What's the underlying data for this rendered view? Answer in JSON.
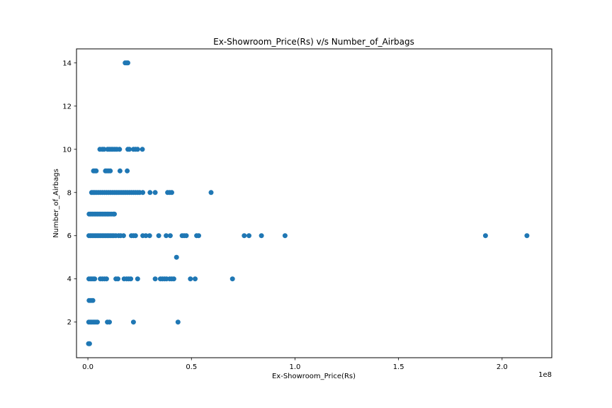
{
  "chart_data": {
    "type": "scatter",
    "title": "Ex-Showroom_Price(Rs) v/s Number_of_Airbags",
    "xlabel": "Ex-Showroom_Price(Rs)",
    "ylabel": "Number_of_Airbags",
    "x_offset_label": "1e8",
    "x_scale": 100000000,
    "xlim": [
      -5500000,
      224000000
    ],
    "ylim": [
      0.35,
      14.65
    ],
    "xticks": [
      0,
      50000000,
      100000000,
      150000000,
      200000000
    ],
    "xtick_labels": [
      "0.0",
      "0.5",
      "1.0",
      "1.5",
      "2.0"
    ],
    "yticks": [
      2,
      4,
      6,
      8,
      10,
      12,
      14
    ],
    "ytick_labels": [
      "2",
      "4",
      "6",
      "8",
      "10",
      "12",
      "14"
    ],
    "grid": false,
    "marker_color": "#1f77b4",
    "points": [
      {
        "x": 18000000,
        "y": 14
      },
      {
        "x": 18700000,
        "y": 14
      },
      {
        "x": 19300000,
        "y": 14
      },
      {
        "x": 5800000,
        "y": 10
      },
      {
        "x": 7000000,
        "y": 10
      },
      {
        "x": 7800000,
        "y": 10
      },
      {
        "x": 9500000,
        "y": 10
      },
      {
        "x": 10300000,
        "y": 10
      },
      {
        "x": 11200000,
        "y": 10
      },
      {
        "x": 12000000,
        "y": 10
      },
      {
        "x": 13000000,
        "y": 10
      },
      {
        "x": 14000000,
        "y": 10
      },
      {
        "x": 15300000,
        "y": 10
      },
      {
        "x": 19300000,
        "y": 10
      },
      {
        "x": 20000000,
        "y": 10
      },
      {
        "x": 22000000,
        "y": 10
      },
      {
        "x": 23000000,
        "y": 10
      },
      {
        "x": 24000000,
        "y": 10
      },
      {
        "x": 26300000,
        "y": 10
      },
      {
        "x": 2700000,
        "y": 9
      },
      {
        "x": 3400000,
        "y": 9
      },
      {
        "x": 4000000,
        "y": 9
      },
      {
        "x": 8500000,
        "y": 9
      },
      {
        "x": 9200000,
        "y": 9
      },
      {
        "x": 10000000,
        "y": 9
      },
      {
        "x": 10800000,
        "y": 9
      },
      {
        "x": 15500000,
        "y": 9
      },
      {
        "x": 19000000,
        "y": 9
      },
      {
        "x": 1800000,
        "y": 8
      },
      {
        "x": 2500000,
        "y": 8
      },
      {
        "x": 3200000,
        "y": 8
      },
      {
        "x": 4000000,
        "y": 8
      },
      {
        "x": 5000000,
        "y": 8
      },
      {
        "x": 6000000,
        "y": 8
      },
      {
        "x": 7000000,
        "y": 8
      },
      {
        "x": 8000000,
        "y": 8
      },
      {
        "x": 9000000,
        "y": 8
      },
      {
        "x": 10000000,
        "y": 8
      },
      {
        "x": 11000000,
        "y": 8
      },
      {
        "x": 12000000,
        "y": 8
      },
      {
        "x": 13000000,
        "y": 8
      },
      {
        "x": 14000000,
        "y": 8
      },
      {
        "x": 15000000,
        "y": 8
      },
      {
        "x": 16000000,
        "y": 8
      },
      {
        "x": 17000000,
        "y": 8
      },
      {
        "x": 18000000,
        "y": 8
      },
      {
        "x": 19000000,
        "y": 8
      },
      {
        "x": 20000000,
        "y": 8
      },
      {
        "x": 21000000,
        "y": 8
      },
      {
        "x": 22000000,
        "y": 8
      },
      {
        "x": 23000000,
        "y": 8
      },
      {
        "x": 24000000,
        "y": 8
      },
      {
        "x": 25000000,
        "y": 8
      },
      {
        "x": 26500000,
        "y": 8
      },
      {
        "x": 30000000,
        "y": 8
      },
      {
        "x": 32500000,
        "y": 8
      },
      {
        "x": 38500000,
        "y": 8
      },
      {
        "x": 39500000,
        "y": 8
      },
      {
        "x": 40500000,
        "y": 8
      },
      {
        "x": 59500000,
        "y": 8
      },
      {
        "x": 600000,
        "y": 7
      },
      {
        "x": 1400000,
        "y": 7
      },
      {
        "x": 2200000,
        "y": 7
      },
      {
        "x": 3000000,
        "y": 7
      },
      {
        "x": 3800000,
        "y": 7
      },
      {
        "x": 4600000,
        "y": 7
      },
      {
        "x": 5400000,
        "y": 7
      },
      {
        "x": 6200000,
        "y": 7
      },
      {
        "x": 7000000,
        "y": 7
      },
      {
        "x": 7800000,
        "y": 7
      },
      {
        "x": 8600000,
        "y": 7
      },
      {
        "x": 9400000,
        "y": 7
      },
      {
        "x": 10200000,
        "y": 7
      },
      {
        "x": 11200000,
        "y": 7
      },
      {
        "x": 12200000,
        "y": 7
      },
      {
        "x": 12800000,
        "y": 7
      },
      {
        "x": 500000,
        "y": 6
      },
      {
        "x": 1300000,
        "y": 6
      },
      {
        "x": 2100000,
        "y": 6
      },
      {
        "x": 2900000,
        "y": 6
      },
      {
        "x": 3700000,
        "y": 6
      },
      {
        "x": 4500000,
        "y": 6
      },
      {
        "x": 5300000,
        "y": 6
      },
      {
        "x": 6100000,
        "y": 6
      },
      {
        "x": 6900000,
        "y": 6
      },
      {
        "x": 7700000,
        "y": 6
      },
      {
        "x": 8500000,
        "y": 6
      },
      {
        "x": 9300000,
        "y": 6
      },
      {
        "x": 10100000,
        "y": 6
      },
      {
        "x": 10900000,
        "y": 6
      },
      {
        "x": 11700000,
        "y": 6
      },
      {
        "x": 12500000,
        "y": 6
      },
      {
        "x": 13500000,
        "y": 6
      },
      {
        "x": 14800000,
        "y": 6
      },
      {
        "x": 15800000,
        "y": 6
      },
      {
        "x": 17200000,
        "y": 6
      },
      {
        "x": 21000000,
        "y": 6
      },
      {
        "x": 22000000,
        "y": 6
      },
      {
        "x": 23000000,
        "y": 6
      },
      {
        "x": 26500000,
        "y": 6
      },
      {
        "x": 28000000,
        "y": 6
      },
      {
        "x": 29800000,
        "y": 6
      },
      {
        "x": 34200000,
        "y": 6
      },
      {
        "x": 37800000,
        "y": 6
      },
      {
        "x": 39800000,
        "y": 6
      },
      {
        "x": 45500000,
        "y": 6
      },
      {
        "x": 46500000,
        "y": 6
      },
      {
        "x": 47500000,
        "y": 6
      },
      {
        "x": 52500000,
        "y": 6
      },
      {
        "x": 53500000,
        "y": 6
      },
      {
        "x": 75500000,
        "y": 6
      },
      {
        "x": 77800000,
        "y": 6
      },
      {
        "x": 83800000,
        "y": 6
      },
      {
        "x": 95200000,
        "y": 6
      },
      {
        "x": 192000000,
        "y": 6
      },
      {
        "x": 212000000,
        "y": 6
      },
      {
        "x": 42800000,
        "y": 5
      },
      {
        "x": 500000,
        "y": 4
      },
      {
        "x": 1200000,
        "y": 4
      },
      {
        "x": 1900000,
        "y": 4
      },
      {
        "x": 2600000,
        "y": 4
      },
      {
        "x": 3300000,
        "y": 4
      },
      {
        "x": 6000000,
        "y": 4
      },
      {
        "x": 7000000,
        "y": 4
      },
      {
        "x": 8000000,
        "y": 4
      },
      {
        "x": 9000000,
        "y": 4
      },
      {
        "x": 13500000,
        "y": 4
      },
      {
        "x": 14500000,
        "y": 4
      },
      {
        "x": 17500000,
        "y": 4
      },
      {
        "x": 18700000,
        "y": 4
      },
      {
        "x": 19700000,
        "y": 4
      },
      {
        "x": 20700000,
        "y": 4
      },
      {
        "x": 24000000,
        "y": 4
      },
      {
        "x": 32500000,
        "y": 4
      },
      {
        "x": 35000000,
        "y": 4
      },
      {
        "x": 36000000,
        "y": 4
      },
      {
        "x": 37000000,
        "y": 4
      },
      {
        "x": 38000000,
        "y": 4
      },
      {
        "x": 39500000,
        "y": 4
      },
      {
        "x": 40500000,
        "y": 4
      },
      {
        "x": 41500000,
        "y": 4
      },
      {
        "x": 49500000,
        "y": 4
      },
      {
        "x": 51800000,
        "y": 4
      },
      {
        "x": 69800000,
        "y": 4
      },
      {
        "x": 600000,
        "y": 3
      },
      {
        "x": 1500000,
        "y": 3
      },
      {
        "x": 2400000,
        "y": 3
      },
      {
        "x": 400000,
        "y": 2
      },
      {
        "x": 1100000,
        "y": 2
      },
      {
        "x": 1800000,
        "y": 2
      },
      {
        "x": 2500000,
        "y": 2
      },
      {
        "x": 3200000,
        "y": 2
      },
      {
        "x": 3900000,
        "y": 2
      },
      {
        "x": 4600000,
        "y": 2
      },
      {
        "x": 9400000,
        "y": 2
      },
      {
        "x": 10400000,
        "y": 2
      },
      {
        "x": 22000000,
        "y": 2
      },
      {
        "x": 43500000,
        "y": 2
      },
      {
        "x": 300000,
        "y": 1
      },
      {
        "x": 800000,
        "y": 1
      }
    ]
  }
}
